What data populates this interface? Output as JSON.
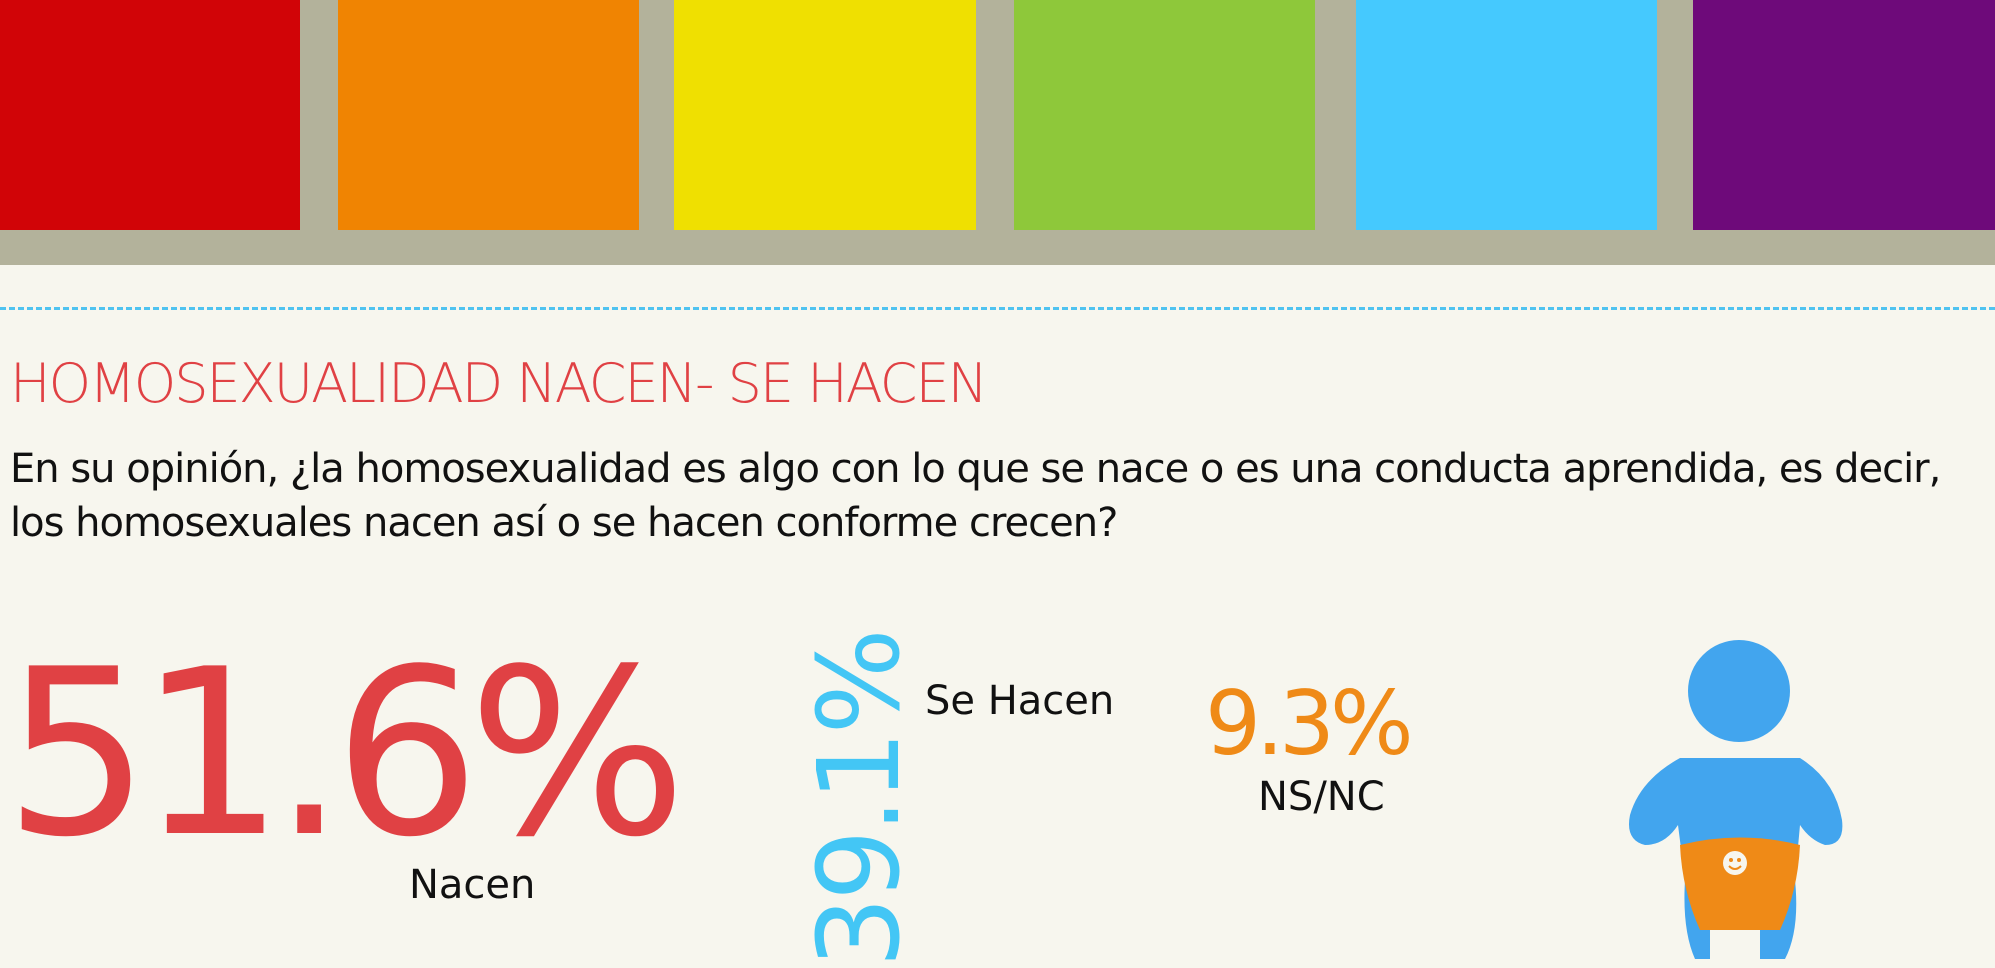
{
  "title": "HOMOSEXUALIDAD NACEN- SE HACEN",
  "question": [
    "En su opinión, ¿la homosexualidad es algo con lo que se nace o es una conducta aprendida, es decir,",
    "los homosexuales nacen así o se hacen conforme crecen?"
  ],
  "stats": [
    {
      "value": "51.6%",
      "label": "Nacen"
    },
    {
      "value": "39.1%",
      "label": "Se Hacen"
    },
    {
      "value": "9.3%",
      "label": "NS/NC"
    }
  ]
}
